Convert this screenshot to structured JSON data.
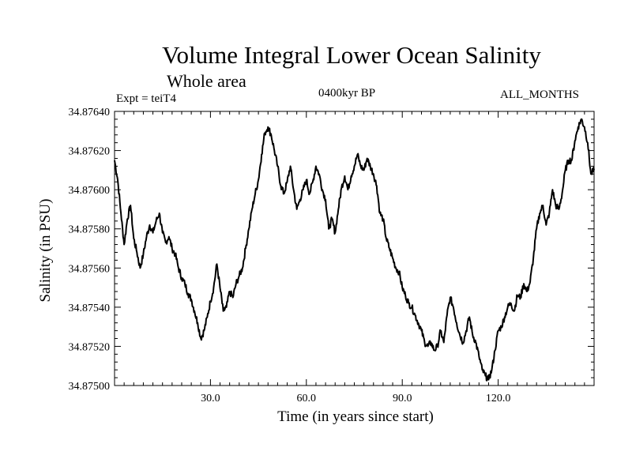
{
  "chart_data": {
    "type": "line",
    "title": "Volume Integral Lower Ocean Salinity",
    "subtitle": "Whole area",
    "expt_label": "Expt = teiT4",
    "period_label": "0400kyr BP",
    "months_label": "ALL_MONTHS",
    "xlabel": "Time (in years since start)",
    "ylabel": "Salinity (in PSU)",
    "xlim": [
      0,
      150
    ],
    "ylim": [
      34.875,
      34.8764
    ],
    "xticks": [
      30,
      60,
      90,
      120
    ],
    "xtick_labels": [
      "30.0",
      "60.0",
      "90.0",
      "120.0"
    ],
    "yticks": [
      34.875,
      34.8752,
      34.8754,
      34.8756,
      34.8758,
      34.876,
      34.8762,
      34.8764
    ],
    "ytick_labels": [
      "34.87500",
      "34.87520",
      "34.87540",
      "34.87560",
      "34.87580",
      "34.87600",
      "34.87620",
      "34.87640"
    ],
    "series": [
      {
        "name": "Salinity",
        "x": [
          0,
          1,
          2,
          3,
          4,
          5,
          6,
          7,
          8,
          9,
          10,
          11,
          12,
          13,
          14,
          15,
          16,
          17,
          18,
          19,
          20,
          21,
          22,
          23,
          24,
          25,
          26,
          27,
          28,
          29,
          30,
          31,
          32,
          33,
          34,
          35,
          36,
          37,
          38,
          39,
          40,
          41,
          42,
          43,
          44,
          45,
          46,
          47,
          48,
          49,
          50,
          51,
          52,
          53,
          54,
          55,
          56,
          57,
          58,
          59,
          60,
          61,
          62,
          63,
          64,
          65,
          66,
          67,
          68,
          69,
          70,
          71,
          72,
          73,
          74,
          75,
          76,
          77,
          78,
          79,
          80,
          81,
          82,
          83,
          84,
          85,
          86,
          87,
          88,
          89,
          90,
          91,
          92,
          93,
          94,
          95,
          96,
          97,
          98,
          99,
          100,
          101,
          102,
          103,
          104,
          105,
          106,
          107,
          108,
          109,
          110,
          111,
          112,
          113,
          114,
          115,
          116,
          117,
          118,
          119,
          120,
          121,
          122,
          123,
          124,
          125,
          126,
          127,
          128,
          129,
          130,
          131,
          132,
          133,
          134,
          135,
          136,
          137,
          138,
          139,
          140,
          141,
          142,
          143,
          144,
          145,
          146,
          147,
          148,
          149,
          150
        ],
        "values": [
          34.87615,
          34.87605,
          34.87588,
          34.87572,
          34.87585,
          34.87592,
          34.87575,
          34.87568,
          34.8756,
          34.87567,
          34.87576,
          34.87582,
          34.87578,
          34.87584,
          34.87588,
          34.87578,
          34.87573,
          34.87576,
          34.8757,
          34.87567,
          34.8756,
          34.87555,
          34.87552,
          34.87547,
          34.87544,
          34.87538,
          34.87532,
          34.87524,
          34.87528,
          34.87535,
          34.87543,
          34.8755,
          34.87562,
          34.8755,
          34.87538,
          34.8754,
          34.87548,
          34.87545,
          34.87552,
          34.87556,
          34.8756,
          34.8757,
          34.8758,
          34.8759,
          34.87598,
          34.87605,
          34.87618,
          34.87629,
          34.87632,
          34.87628,
          34.8762,
          34.87612,
          34.87602,
          34.87598,
          34.87604,
          34.87612,
          34.876,
          34.8759,
          34.87595,
          34.876,
          34.87605,
          34.87598,
          34.87604,
          34.87612,
          34.87608,
          34.876,
          34.87595,
          34.8758,
          34.87585,
          34.87578,
          34.8759,
          34.87601,
          34.87607,
          34.876,
          34.87607,
          34.87612,
          34.87618,
          34.87612,
          34.8761,
          34.87616,
          34.87612,
          34.87608,
          34.87602,
          34.87588,
          34.87585,
          34.87575,
          34.8757,
          34.87565,
          34.8756,
          34.87558,
          34.8755,
          34.87546,
          34.87542,
          34.8754,
          34.87536,
          34.87532,
          34.87528,
          34.87522,
          34.8752,
          34.87522,
          34.87518,
          34.8752,
          34.87528,
          34.87522,
          34.87536,
          34.87545,
          34.8754,
          34.87532,
          34.87526,
          34.87522,
          34.87528,
          34.87535,
          34.87526,
          34.87522,
          34.87515,
          34.87508,
          34.87505,
          34.87503,
          34.87508,
          34.87518,
          34.87528,
          34.8753,
          34.87535,
          34.8754,
          34.87542,
          34.87538,
          34.87546,
          34.87545,
          34.87552,
          34.87548,
          34.87553,
          34.87565,
          34.8758,
          34.87588,
          34.87592,
          34.87582,
          34.87588,
          34.876,
          34.87592,
          34.8759,
          34.87598,
          34.8761,
          34.87615,
          34.87615,
          34.87625,
          34.87632,
          34.87636,
          34.87632,
          34.87624,
          34.87608,
          34.8761
        ]
      }
    ]
  }
}
